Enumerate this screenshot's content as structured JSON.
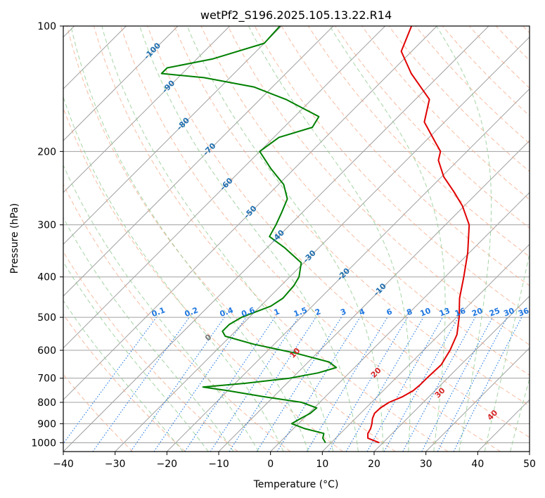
{
  "chart_data": {
    "type": "skew-t",
    "title": "wetPf2_S196.2025.105.13.22.R14",
    "xlabel": "Temperature (°C)",
    "ylabel": "Pressure (hPa)",
    "xlim": [
      -40,
      50
    ],
    "ylim": [
      1050,
      100
    ],
    "x_ticks": [
      "−40",
      "−30",
      "−20",
      "−10",
      "0",
      "10",
      "20",
      "30",
      "40",
      "50"
    ],
    "y_ticks": [
      "100",
      "200",
      "300",
      "400",
      "500",
      "600",
      "700",
      "800",
      "900",
      "1000"
    ],
    "y_tick_values": [
      100,
      200,
      300,
      400,
      500,
      600,
      700,
      800,
      900,
      1000
    ],
    "grid": true,
    "colors": {
      "temperature": "#e00000",
      "dewpoint": "#008000",
      "isotherm": "#a0a0a0",
      "dry_adiabat": "#f4a582",
      "moist_adiabat": "#8fc98f",
      "mixing_ratio": "#1f77e0",
      "isotherm_label": "#1f6fb0",
      "moist_label": "#d62728"
    },
    "series": [
      {
        "role": "temperature",
        "points": [
          [
            1000,
            19.3
          ],
          [
            975,
            16.2
          ],
          [
            950,
            15.3
          ],
          [
            925,
            14.9
          ],
          [
            900,
            14.2
          ],
          [
            875,
            13.3
          ],
          [
            850,
            12.7
          ],
          [
            825,
            12.8
          ],
          [
            800,
            13.4
          ],
          [
            775,
            14.9
          ],
          [
            750,
            15.8
          ],
          [
            725,
            16.0
          ],
          [
            700,
            16.0
          ],
          [
            650,
            16.2
          ],
          [
            600,
            15.1
          ],
          [
            550,
            13.4
          ],
          [
            500,
            10.5
          ],
          [
            450,
            6.9
          ],
          [
            400,
            3.6
          ],
          [
            350,
            -0.3
          ],
          [
            300,
            -5.4
          ],
          [
            270,
            -10.4
          ],
          [
            250,
            -14.7
          ],
          [
            230,
            -19.6
          ],
          [
            210,
            -23.8
          ],
          [
            200,
            -25.1
          ],
          [
            190,
            -27.9
          ],
          [
            170,
            -33.9
          ],
          [
            150,
            -37.3
          ],
          [
            130,
            -45.8
          ],
          [
            115,
            -52.0
          ],
          [
            100,
            -54.9
          ]
        ]
      },
      {
        "role": "dewpoint",
        "points": [
          [
            1000,
            8.9
          ],
          [
            975,
            7.5
          ],
          [
            950,
            6.8
          ],
          [
            925,
            2.2
          ],
          [
            900,
            -1.3
          ],
          [
            875,
            -0.6
          ],
          [
            850,
            0.3
          ],
          [
            825,
            0.5
          ],
          [
            800,
            -3.5
          ],
          [
            775,
            -12.0
          ],
          [
            750,
            -20.0
          ],
          [
            735,
            -25.5
          ],
          [
            720,
            -18.0
          ],
          [
            700,
            -10.5
          ],
          [
            680,
            -6.0
          ],
          [
            660,
            -3.5
          ],
          [
            640,
            -6.0
          ],
          [
            610,
            -14.0
          ],
          [
            580,
            -24.0
          ],
          [
            555,
            -31.0
          ],
          [
            540,
            -32.5
          ],
          [
            520,
            -32.5
          ],
          [
            500,
            -31.5
          ],
          [
            470,
            -28.0
          ],
          [
            450,
            -27.2
          ],
          [
            420,
            -27.5
          ],
          [
            400,
            -28.2
          ],
          [
            370,
            -30.5
          ],
          [
            340,
            -36.7
          ],
          [
            320,
            -41.7
          ],
          [
            300,
            -42.7
          ],
          [
            280,
            -44.0
          ],
          [
            260,
            -45.5
          ],
          [
            240,
            -49.0
          ],
          [
            220,
            -54.5
          ],
          [
            200,
            -60.0
          ],
          [
            185,
            -59.0
          ],
          [
            175,
            -54.5
          ],
          [
            165,
            -55.3
          ],
          [
            150,
            -65.0
          ],
          [
            140,
            -73.6
          ],
          [
            133,
            -85.0
          ],
          [
            130,
            -94.0
          ],
          [
            126,
            -94.0
          ],
          [
            120,
            -87.0
          ],
          [
            110,
            -80.0
          ],
          [
            100,
            -80.3
          ]
        ]
      }
    ],
    "isotherm_labels": [
      "-100",
      "-90",
      "-80",
      "-70",
      "-60",
      "-50",
      "-40",
      "-30",
      "-20",
      "-10"
    ],
    "mixing_ratio_labels": [
      "0.1",
      "0.2",
      "0.4",
      "0.6",
      "1",
      "1.5",
      "2",
      "3",
      "4",
      "6",
      "8",
      "10",
      "13",
      "16",
      "20",
      "25",
      "30",
      "36"
    ],
    "moist_adiabat_labels": [
      "0",
      "10",
      "20",
      "30",
      "40"
    ]
  }
}
